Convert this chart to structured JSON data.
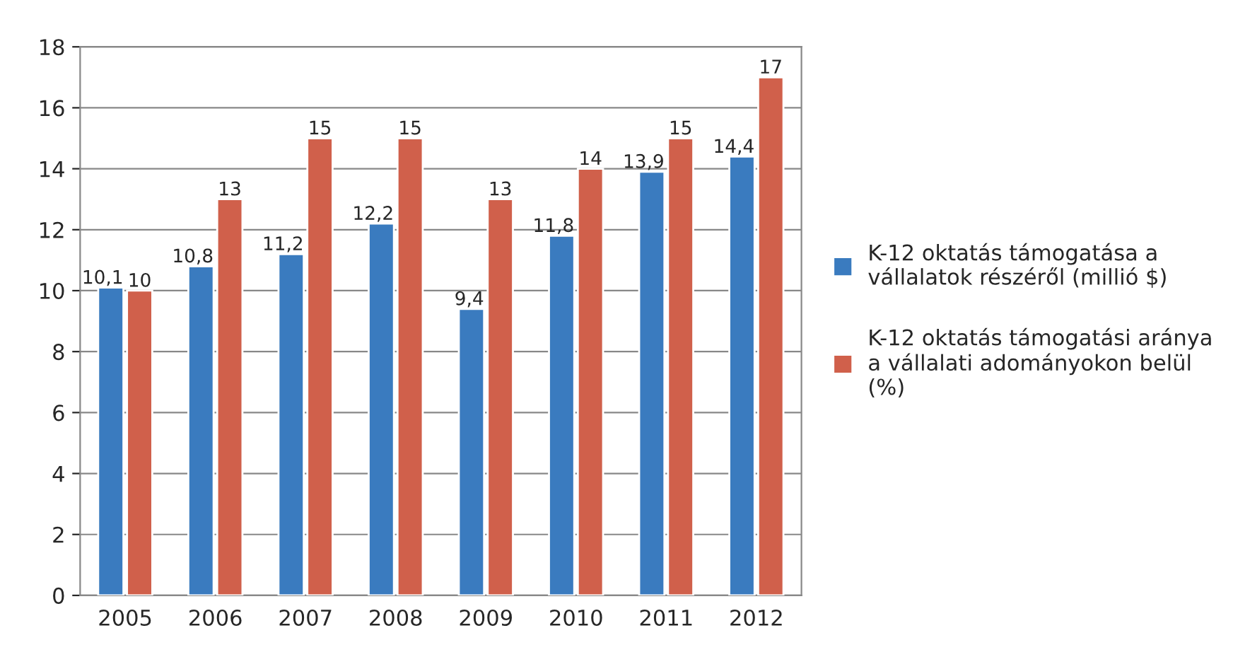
{
  "chart_data": {
    "type": "bar",
    "categories": [
      "2005",
      "2006",
      "2007",
      "2008",
      "2009",
      "2010",
      "2011",
      "2012"
    ],
    "series": [
      {
        "name": "K-12 oktatás támogatása a\nvállalatok részéről (millió $)",
        "color": "#3a7bbf",
        "values": [
          10.1,
          10.8,
          11.2,
          12.2,
          9.4,
          11.8,
          13.9,
          14.4
        ],
        "value_labels": [
          "10,1",
          "10,8",
          "11,2",
          "12,2",
          "9,4",
          "11,8",
          "13,9",
          "14,4"
        ]
      },
      {
        "name": "K-12 oktatás támogatási aránya\na vállalati adományokon belül\n(%)",
        "color": "#d0604b",
        "values": [
          10,
          13,
          15,
          15,
          13,
          14,
          15,
          17
        ],
        "value_labels": [
          "10",
          "13",
          "15",
          "15",
          "13",
          "14",
          "15",
          "17"
        ]
      }
    ],
    "ylim": [
      0,
      18
    ],
    "yticks": [
      0,
      2,
      4,
      6,
      8,
      10,
      12,
      14,
      16,
      18
    ],
    "grid": "y",
    "legend": "right"
  }
}
